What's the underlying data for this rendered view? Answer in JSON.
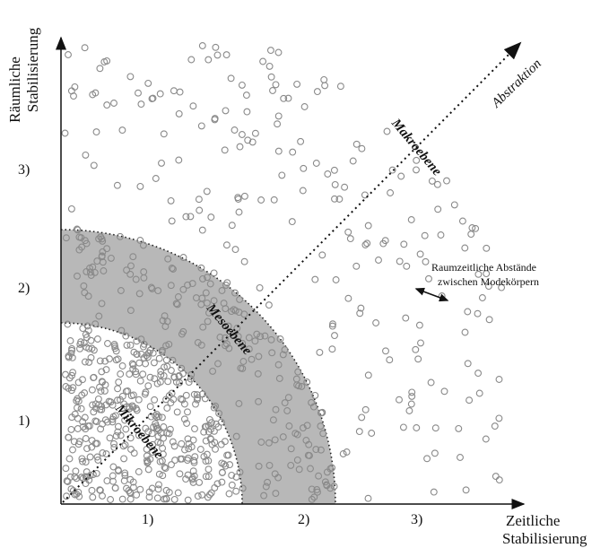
{
  "axes": {
    "x_label_line1": "Zeitliche",
    "x_label_line2": "Stabilisierung",
    "y_label_line1": "Räumliche",
    "y_label_line2": "Stabilisierung",
    "x_ticks": [
      "1)",
      "2)",
      "3)"
    ],
    "y_ticks": [
      "1)",
      "2)",
      "3)"
    ]
  },
  "levels": {
    "micro": "Mikroebene",
    "meso": "Mesoebene",
    "macro": "Makroebene"
  },
  "abstraction_label": "Abstraktion",
  "annotation": {
    "line1": "Raumzeitliche Abstände",
    "line2": "zwischen Modekörpern"
  },
  "colors": {
    "meso_band": "#b8b8b8",
    "points": "#8a8a8a",
    "axes": "#111111"
  }
}
